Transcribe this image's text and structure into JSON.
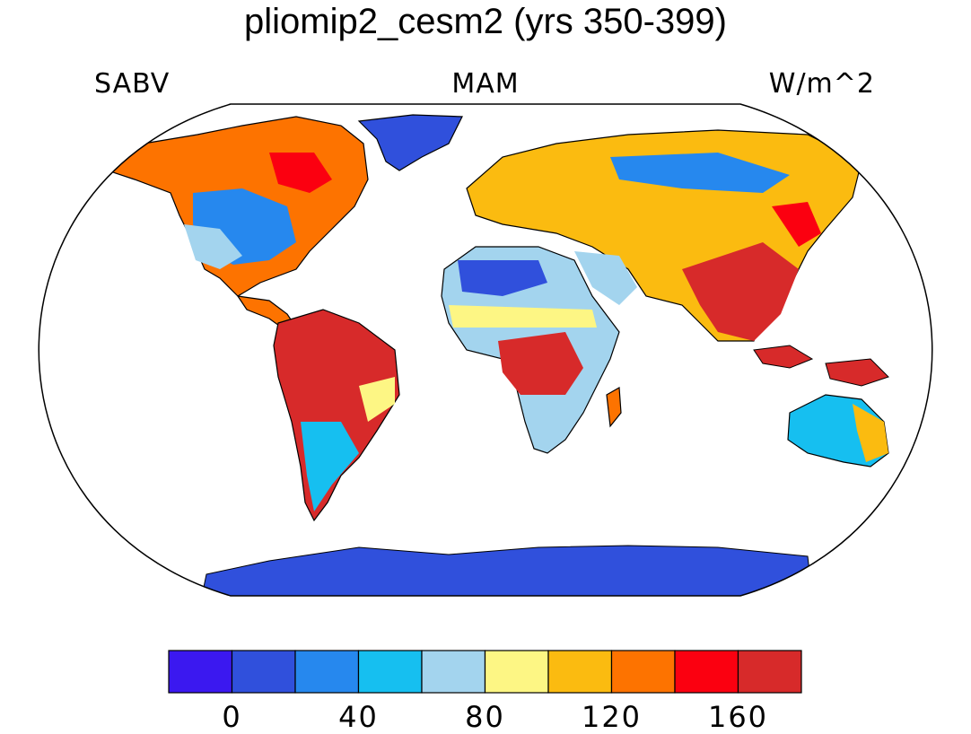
{
  "title": "pliomip2_cesm2 (yrs 350-399)",
  "left_label": "SABV",
  "center_label": "MAM",
  "right_label": "W/m^2",
  "map": {
    "projection": "Robinson",
    "ocean_color": "#ffffff",
    "coastline_color": "#000000",
    "antarctica_color": "#3050dc"
  },
  "colorbar": {
    "colors": [
      "#3b18f0",
      "#3050dc",
      "#2688ee",
      "#16bff0",
      "#a3d4ee",
      "#fdf684",
      "#fbbb10",
      "#fd7300",
      "#fb0010",
      "#d72a2a"
    ],
    "boundaries": [
      -20,
      0,
      20,
      40,
      60,
      80,
      100,
      120,
      140,
      160,
      180
    ],
    "tick_labels": [
      {
        "value": 0,
        "label": "0"
      },
      {
        "value": 40,
        "label": "40"
      },
      {
        "value": 80,
        "label": "80"
      },
      {
        "value": 120,
        "label": "120"
      },
      {
        "value": 160,
        "label": "160"
      }
    ]
  }
}
